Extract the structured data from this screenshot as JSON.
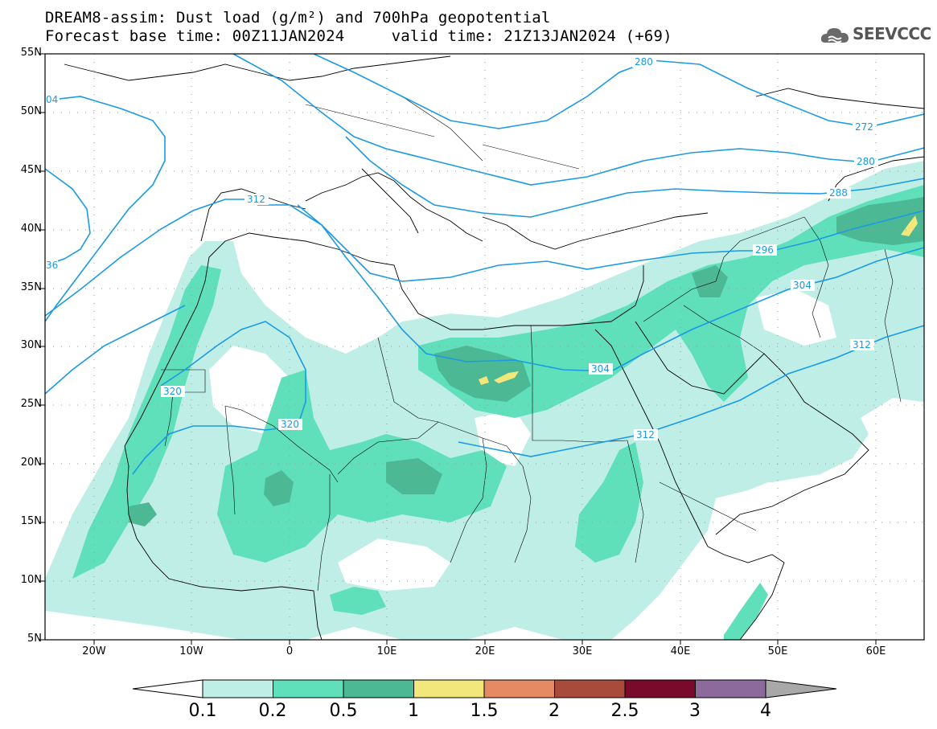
{
  "title": {
    "line1": "DREAM8-assim: Dust load (g/m²) and 700hPa geopotential",
    "line2": "Forecast base time: 00Z11JAN2024     valid time: 21Z13JAN2024 (+69)"
  },
  "logo": {
    "text": "SEEVCCC",
    "icon": "cloud-logo-icon"
  },
  "map": {
    "lon_range": [
      -25,
      65
    ],
    "lat_range": [
      5,
      55
    ],
    "lat_labels": [
      "55N",
      "50N",
      "45N",
      "40N",
      "35N",
      "30N",
      "25N",
      "20N",
      "15N",
      "10N",
      "5N"
    ],
    "lon_labels": [
      "20W",
      "10W",
      "0",
      "10E",
      "20E",
      "30E",
      "40E",
      "50E",
      "60E"
    ],
    "contour_labels": [
      "280",
      "272",
      "280",
      "288",
      "296",
      "304",
      "312",
      "304",
      "312",
      "320",
      "320",
      "312",
      "04",
      "36"
    ]
  },
  "colorbar": {
    "labels": [
      "0.1",
      "0.2",
      "0.5",
      "1",
      "1.5",
      "2",
      "2.5",
      "3",
      "4"
    ],
    "colors": [
      "#bfeee6",
      "#5fe0ba",
      "#4cb894",
      "#f2e77a",
      "#e58a63",
      "#a84b3c",
      "#7a0a2c",
      "#8c6a9c"
    ],
    "under_color": "#ffffff",
    "over_color": "#a8a8a8"
  }
}
